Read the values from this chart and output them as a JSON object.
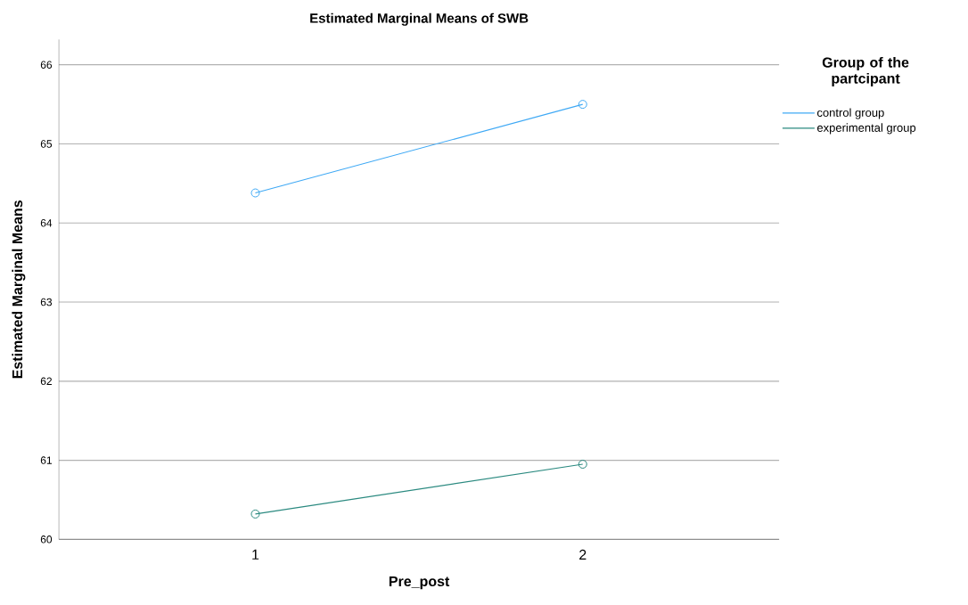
{
  "chart_data": {
    "type": "line",
    "title": "Estimated Marginal Means of SWB",
    "xlabel": "Pre_post",
    "ylabel": "Estimated Marginal Means",
    "legend_title": "Group of the partcipant",
    "categories": [
      "1",
      "2"
    ],
    "series": [
      {
        "name": "control group",
        "color": "#3fa9f5",
        "values": [
          64.38,
          65.5
        ]
      },
      {
        "name": "experimental group",
        "color": "#2b8a80",
        "values": [
          60.32,
          60.95
        ]
      }
    ],
    "ylim": [
      60,
      66.32
    ],
    "yticks": [
      60,
      61,
      62,
      63,
      64,
      65,
      66
    ],
    "grid": "y",
    "legend": "top right",
    "marker": "circle",
    "line_style": "solid"
  }
}
